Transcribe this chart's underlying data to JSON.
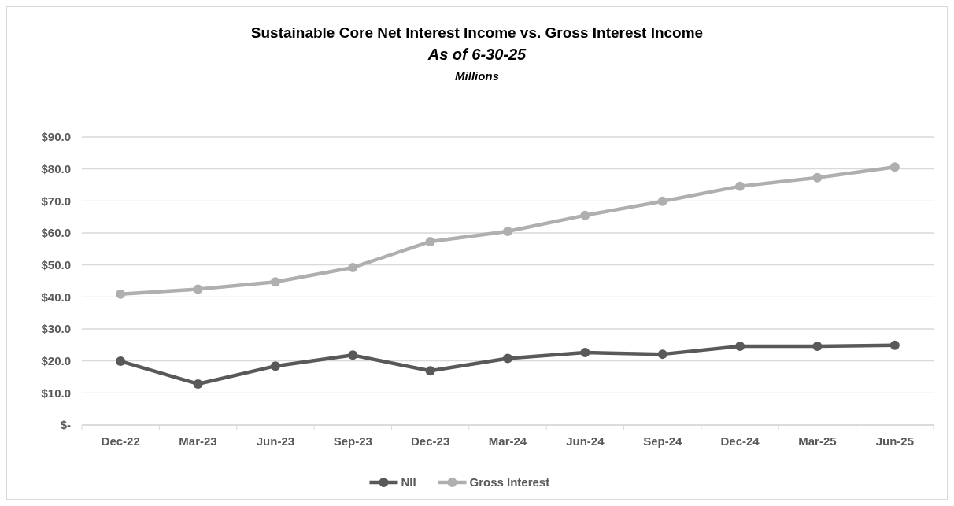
{
  "chart_data": {
    "type": "line",
    "title": "Sustainable Core Net Interest Income vs. Gross Interest Income",
    "subtitle": "As of 6-30-25",
    "ylabel": "Millions",
    "categories": [
      "Dec-22",
      "Mar-23",
      "Jun-23",
      "Sep-23",
      "Dec-23",
      "Mar-24",
      "Jun-24",
      "Sep-24",
      "Dec-24",
      "Mar-25",
      "Jun-25"
    ],
    "series": [
      {
        "name": "NII",
        "color": "#595959",
        "values": [
          19.9,
          12.8,
          18.4,
          21.8,
          16.9,
          20.8,
          22.6,
          22.1,
          24.6,
          24.6,
          24.9
        ]
      },
      {
        "name": "Gross Interest",
        "color": "#afafaf",
        "values": [
          40.9,
          42.4,
          44.7,
          49.2,
          57.3,
          60.5,
          65.5,
          69.9,
          74.6,
          77.3,
          80.6
        ]
      }
    ],
    "ylim": [
      0,
      90
    ],
    "yticks": [
      {
        "value": 0,
        "label": "$-"
      },
      {
        "value": 10,
        "label": "$10.0"
      },
      {
        "value": 20,
        "label": "$20.0"
      },
      {
        "value": 30,
        "label": "$30.0"
      },
      {
        "value": 40,
        "label": "$40.0"
      },
      {
        "value": 50,
        "label": "$50.0"
      },
      {
        "value": 60,
        "label": "$60.0"
      },
      {
        "value": 70,
        "label": "$70.0"
      },
      {
        "value": 80,
        "label": "$80.0"
      },
      {
        "value": 90,
        "label": "$90.0"
      }
    ],
    "grid": "y",
    "legend": "bottom",
    "marker": "circle",
    "line_style": "solid"
  }
}
